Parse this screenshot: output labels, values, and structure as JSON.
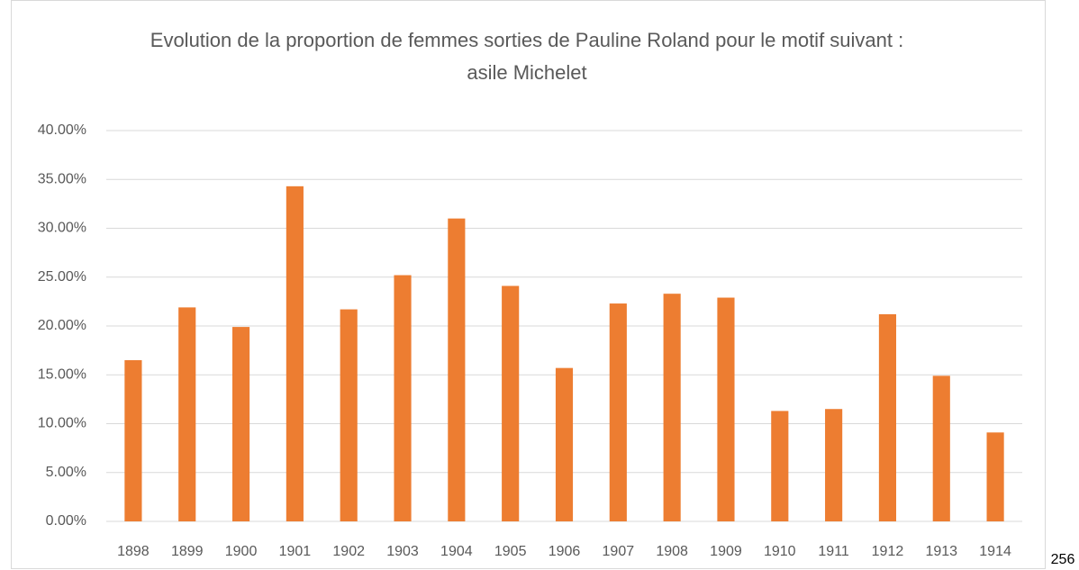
{
  "chart_data": {
    "type": "bar",
    "title": [
      "Evolution de la proportion de femmes sorties de Pauline Roland pour le motif suivant  :",
      "asile Michelet"
    ],
    "categories": [
      "1898",
      "1899",
      "1900",
      "1901",
      "1902",
      "1903",
      "1904",
      "1905",
      "1906",
      "1907",
      "1908",
      "1909",
      "1910",
      "1911",
      "1912",
      "1913",
      "1914"
    ],
    "values": [
      16.5,
      21.9,
      19.9,
      34.3,
      21.7,
      25.2,
      31.0,
      24.1,
      15.7,
      22.3,
      23.3,
      22.9,
      11.3,
      11.5,
      21.2,
      14.9,
      9.1
    ],
    "color": "#ed7d31",
    "ylim": [
      0,
      40
    ],
    "yticks": [
      {
        "value": 0,
        "label": "0.00%"
      },
      {
        "value": 5,
        "label": "5.00%"
      },
      {
        "value": 10,
        "label": "10.00%"
      },
      {
        "value": 15,
        "label": "15.00%"
      },
      {
        "value": 20,
        "label": "20.00%"
      },
      {
        "value": 25,
        "label": "25.00%"
      },
      {
        "value": 30,
        "label": "30.00%"
      },
      {
        "value": 35,
        "label": "35.00%"
      },
      {
        "value": 40,
        "label": "40.00%"
      }
    ],
    "grid": true
  },
  "page_number": "256"
}
